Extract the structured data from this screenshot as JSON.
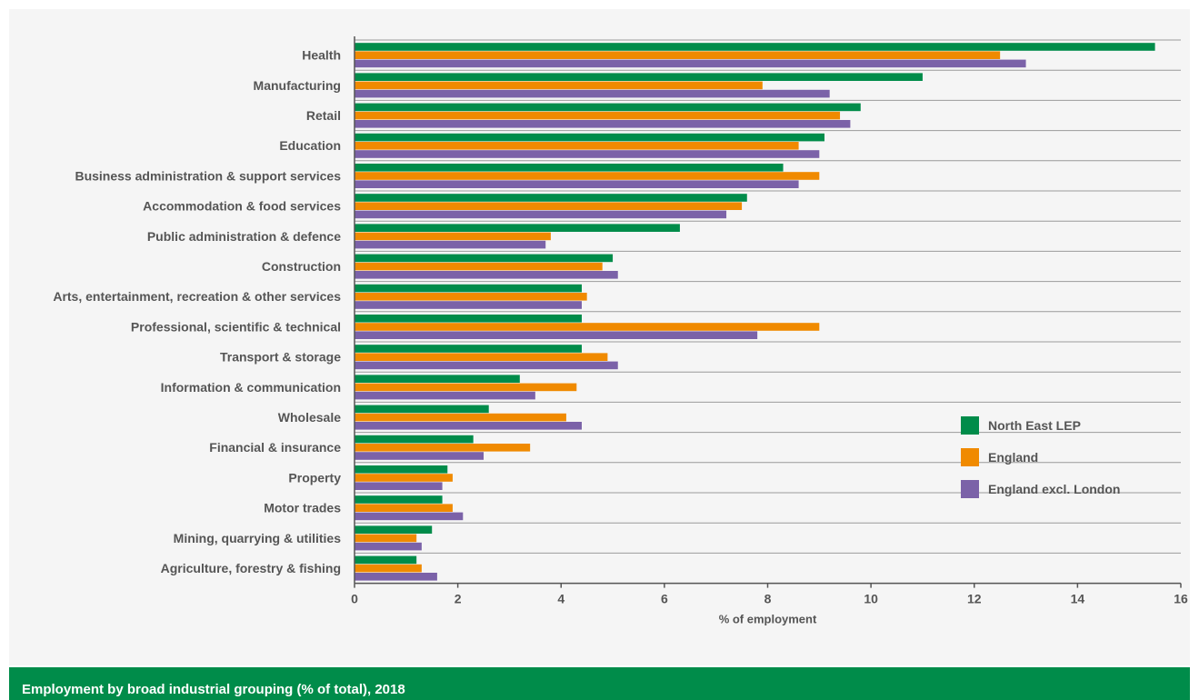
{
  "chart_data": {
    "type": "bar",
    "orientation": "horizontal",
    "categories": [
      "Health",
      "Manufacturing",
      "Retail",
      "Education",
      "Business administration & support services",
      "Accommodation & food services",
      "Public administration & defence",
      "Construction",
      "Arts, entertainment, recreation & other services",
      "Professional, scientific & technical",
      "Transport & storage",
      "Information & communication",
      "Wholesale",
      "Financial & insurance",
      "Property",
      "Motor trades",
      "Mining, quarrying & utilities",
      "Agriculture, forestry & fishing"
    ],
    "series": [
      {
        "name": "North East LEP",
        "color": "#008c4a",
        "values": [
          15.5,
          11.0,
          9.8,
          9.1,
          8.3,
          7.6,
          6.3,
          5.0,
          4.4,
          4.4,
          4.4,
          3.2,
          2.6,
          2.3,
          1.8,
          1.7,
          1.5,
          1.2
        ]
      },
      {
        "name": "England",
        "color": "#f08a00",
        "values": [
          12.5,
          7.9,
          9.4,
          8.6,
          9.0,
          7.5,
          3.8,
          4.8,
          4.5,
          9.0,
          4.9,
          4.3,
          4.1,
          3.4,
          1.9,
          1.9,
          1.2,
          1.3
        ]
      },
      {
        "name": "England excl. London",
        "color": "#7b62a8",
        "values": [
          13.0,
          9.2,
          9.6,
          9.0,
          8.6,
          7.2,
          3.7,
          5.1,
          4.4,
          7.8,
          5.1,
          3.5,
          4.4,
          2.5,
          1.7,
          2.1,
          1.3,
          1.6
        ]
      }
    ],
    "xlabel": "% of employment",
    "xlim": [
      0,
      16
    ],
    "xticks": [
      "0",
      "2",
      "4",
      "6",
      "8",
      "10",
      "12",
      "14",
      "16"
    ],
    "grid": true,
    "legend_position": "right"
  },
  "caption": "Employment by broad industrial grouping (% of total), 2018"
}
